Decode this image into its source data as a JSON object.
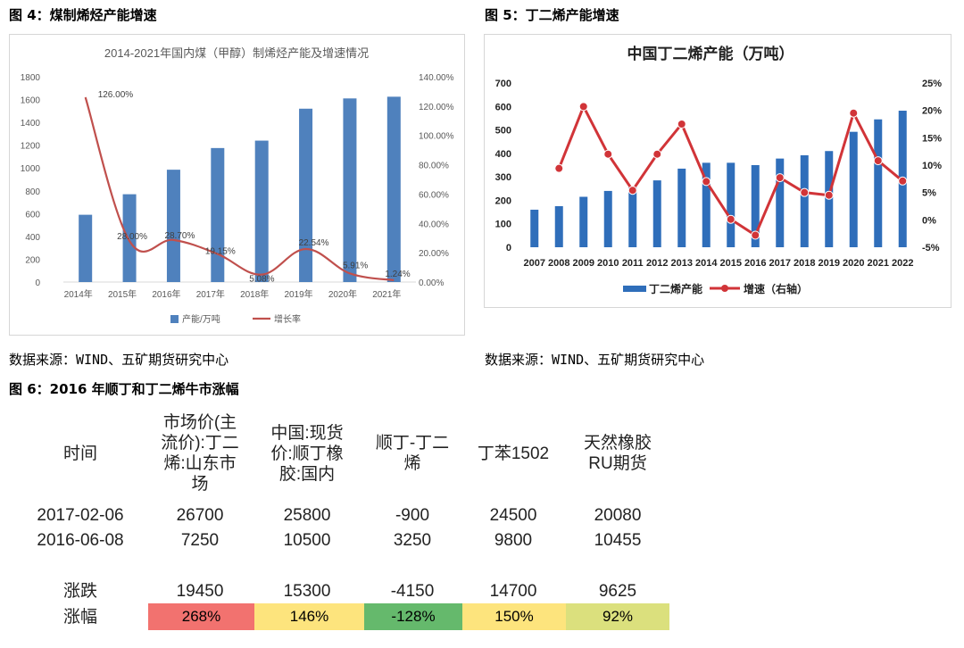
{
  "figure4": {
    "title": "图 4：煤制烯烃产能增速",
    "source": "数据来源：WIND、五矿期货研究中心"
  },
  "figure5": {
    "title": "图 5：丁二烯产能增速",
    "source": "数据来源：WIND、五矿期货研究中心"
  },
  "figure6": {
    "title": "图 6：2016 年顺丁和丁二烯牛市涨幅",
    "headers": [
      "时间",
      "市场价(主流价):丁二烯:山东市场",
      "中国:现货价:顺丁橡胶:国内",
      "顺丁-丁二烯",
      "丁苯1502",
      "天然橡胶RU期货"
    ],
    "header_lines": [
      [
        "时间"
      ],
      [
        "市场价(主",
        "流价):丁二",
        "烯:山东市",
        "场"
      ],
      [
        "中国:现货",
        "价:顺丁橡",
        "胶:国内"
      ],
      [
        "顺丁-丁二",
        "烯"
      ],
      [
        "丁苯1502"
      ],
      [
        "天然橡胶",
        "RU期货"
      ]
    ],
    "rows": [
      [
        "2017-02-06",
        "26700",
        "25800",
        "-900",
        "24500",
        "20080"
      ],
      [
        "2016-06-08",
        "7250",
        "10500",
        "3250",
        "9800",
        "10455"
      ],
      [
        "涨跌",
        "19450",
        "15300",
        "-4150",
        "14700",
        "9625"
      ]
    ],
    "pct_label": "涨幅",
    "pct": [
      "268%",
      "146%",
      "-128%",
      "150%",
      "92%"
    ],
    "pct_colors": [
      "#f2726f",
      "#fde47d",
      "#65b96c",
      "#fde47d",
      "#dbe07d"
    ]
  },
  "chart_data": [
    {
      "type": "bar",
      "title": "2014-2021年国内煤（甲醇）制烯烃产能及增速情况",
      "categories": [
        "2014年",
        "2015年",
        "2016年",
        "2017年",
        "2018年",
        "2019年",
        "2020年",
        "2021年"
      ],
      "series": [
        {
          "name": "产能/万吨",
          "type": "bar",
          "axis": "left",
          "color": "#4f81bd",
          "values": [
            590,
            770,
            985,
            1175,
            1240,
            1520,
            1610,
            1625
          ]
        },
        {
          "name": "增长率",
          "type": "line",
          "axis": "right",
          "color": "#c0504d",
          "values": [
            126.0,
            28.0,
            28.7,
            19.15,
            5.08,
            22.54,
            5.91,
            1.24
          ],
          "labels": [
            "126.00%",
            "28.00%",
            "28.70%",
            "19.15%",
            "5.08%",
            "22.54%",
            "5.91%",
            "1.24%"
          ]
        }
      ],
      "ylim": [
        0,
        1800
      ],
      "yticks": [
        "0",
        "200",
        "400",
        "600",
        "800",
        "1000",
        "1200",
        "1400",
        "1600",
        "1800"
      ],
      "y2lim": [
        0,
        140
      ],
      "y2ticks": [
        "0.00%",
        "20.00%",
        "40.00%",
        "60.00%",
        "80.00%",
        "100.00%",
        "120.00%",
        "140.00%"
      ],
      "legend": "bottom",
      "grid": false
    },
    {
      "type": "bar",
      "title": "中国丁二烯产能（万吨）",
      "categories": [
        "2007",
        "2008",
        "2009",
        "2010",
        "2011",
        "2012",
        "2013",
        "2014",
        "2015",
        "2016",
        "2017",
        "2018",
        "2019",
        "2020",
        "2021",
        "2022"
      ],
      "series": [
        {
          "name": "丁二烯产能",
          "type": "bar",
          "axis": "left",
          "color": "#2f6eba",
          "values": [
            160,
            175,
            215,
            240,
            255,
            285,
            335,
            360,
            360,
            350,
            378,
            392,
            410,
            492,
            545,
            582
          ]
        },
        {
          "name": "增速（右轴）",
          "type": "line",
          "axis": "right",
          "color": "#d13438",
          "values": [
            null,
            9.4,
            20.7,
            12.0,
            5.4,
            12.0,
            17.5,
            7.0,
            0.1,
            -2.8,
            7.7,
            5.0,
            4.5,
            19.5,
            10.8,
            7.1
          ]
        }
      ],
      "ylim": [
        0,
        700
      ],
      "yticks": [
        "0",
        "100",
        "200",
        "300",
        "400",
        "500",
        "600",
        "700"
      ],
      "y2lim": [
        -5,
        25
      ],
      "y2ticks": [
        "-5%",
        "0%",
        "5%",
        "10%",
        "15%",
        "20%",
        "25%"
      ],
      "legend": "bottom",
      "grid": false
    }
  ]
}
